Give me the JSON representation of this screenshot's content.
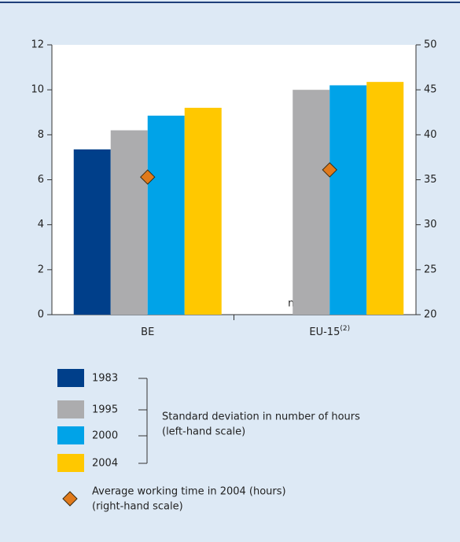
{
  "chart_data": {
    "type": "bar",
    "categories": [
      "BE",
      "EU-15"
    ],
    "category_notes": {
      "1": "(2)"
    },
    "series": [
      {
        "name": "1983",
        "color": "#003f8a",
        "values": [
          7.35,
          null
        ],
        "value_labels": [
          null,
          "n."
        ]
      },
      {
        "name": "1995",
        "color": "#acacae",
        "values": [
          8.2,
          10.0
        ]
      },
      {
        "name": "2000",
        "color": "#00a3e8",
        "values": [
          8.85,
          10.2
        ]
      },
      {
        "name": "2004",
        "color": "#ffc800",
        "values": [
          9.2,
          10.35
        ]
      },
      {
        "name": "Average working time in 2004 (hours)",
        "legend_lines": [
          "Average working time in 2004 (hours)",
          "(right-hand scale)"
        ],
        "type": "scatter",
        "marker": "diamond",
        "axis": "y2",
        "color": "#e07a1c",
        "values": [
          35.3,
          36.1
        ]
      }
    ],
    "bar_group_label": [
      "Standard deviation in number of hours",
      "(left-hand scale)"
    ],
    "ylim": [
      0,
      12
    ],
    "yticks": [
      0,
      2,
      4,
      6,
      8,
      10,
      12
    ],
    "y2lim": [
      20,
      50
    ],
    "y2ticks": [
      20,
      25,
      30,
      35,
      40,
      45,
      50
    ]
  }
}
